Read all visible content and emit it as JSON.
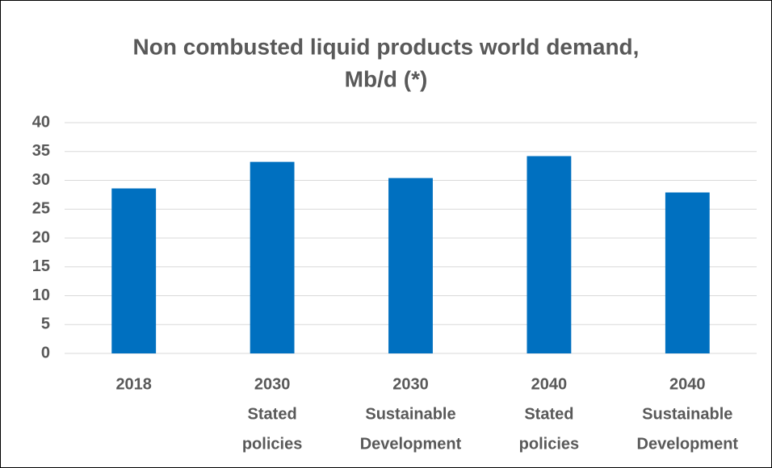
{
  "chart_data": {
    "type": "bar",
    "title": [
      "Non combusted liquid products world demand,",
      "Mb/d (*)"
    ],
    "categories": [
      [
        "2018"
      ],
      [
        "2030",
        "Stated",
        "policies"
      ],
      [
        "2030",
        "Sustainable",
        "Development"
      ],
      [
        "2040",
        "Stated",
        "policies"
      ],
      [
        "2040",
        "Sustainable",
        "Development"
      ]
    ],
    "values": [
      28.6,
      33.2,
      30.4,
      34.2,
      27.9
    ],
    "color": "#0070c0",
    "ylim": [
      0,
      40
    ],
    "yticks": [
      0,
      5,
      10,
      15,
      20,
      25,
      30,
      35,
      40
    ],
    "grid": true
  }
}
